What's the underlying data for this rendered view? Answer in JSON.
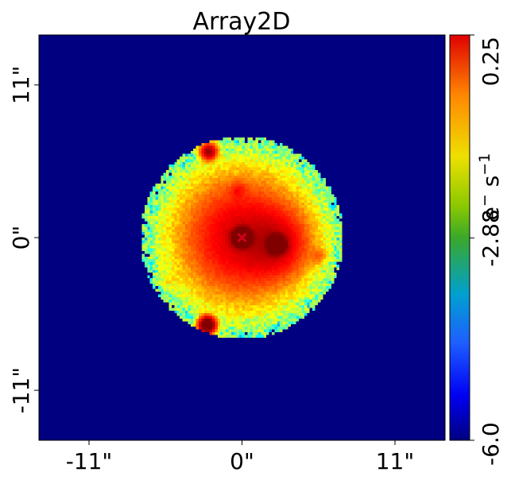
{
  "chart_data": {
    "type": "heatmap",
    "title": "Array2D",
    "x_ticks": [
      "-11\"",
      "0\"",
      "11\""
    ],
    "x_tick_values": [
      -11,
      0,
      11
    ],
    "y_ticks": [
      "11\"",
      "0\"",
      "-11\""
    ],
    "y_tick_values": [
      11,
      0,
      -11
    ],
    "xlim": [
      -14.6,
      14.6
    ],
    "ylim": [
      -14.6,
      14.6
    ],
    "colorbar": {
      "ticks": [
        "0.25",
        "-2.88",
        "-6.0"
      ],
      "tick_values": [
        0.25,
        -2.88,
        -6.0
      ],
      "label": "e$^-$ s$^{-1}$",
      "range": [
        -6.0,
        0.25
      ],
      "colormap": "jet"
    },
    "mask_radius_arcsec": 7.3,
    "background_value": -6.0,
    "sources": [
      {
        "name": "central-peak",
        "x": 0.0,
        "y": 0.0,
        "peak": 0.25
      },
      {
        "name": "east-peak",
        "x": 2.5,
        "y": -0.5,
        "peak": 0.1
      },
      {
        "name": "clump-upper-left",
        "x": -2.4,
        "y": 6.2,
        "peak": -0.5
      },
      {
        "name": "clump-top",
        "x": -0.3,
        "y": 3.4,
        "peak": -1.2
      },
      {
        "name": "clump-lower-left",
        "x": -2.5,
        "y": -6.3,
        "peak": -0.2
      },
      {
        "name": "clump-right-edge",
        "x": 5.5,
        "y": -1.3,
        "peak": -1.3
      },
      {
        "name": "clump-left",
        "x": -5.3,
        "y": -3.0,
        "peak": -1.8
      }
    ],
    "marker": {
      "symbol": "x",
      "x": 0.0,
      "y": 0.0,
      "color": "#d0021b"
    }
  },
  "colors": {
    "background": "#000080",
    "marker": "#d0021b"
  }
}
